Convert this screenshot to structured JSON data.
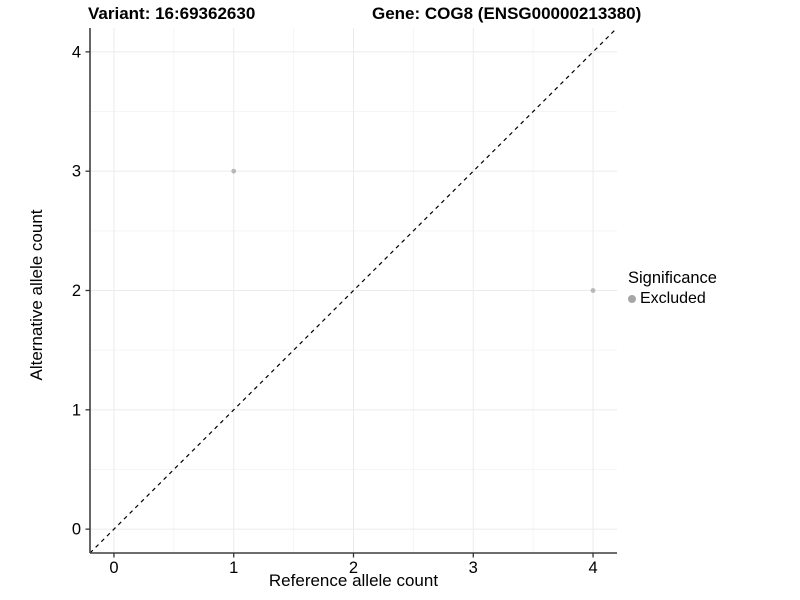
{
  "chart_data": {
    "type": "scatter",
    "titles": {
      "left": "Variant: 16:69362630",
      "right": "Gene: COG8 (ENSG00000213380)"
    },
    "xlabel": "Reference allele count",
    "ylabel": "Alternative allele count",
    "xlim": [
      -0.2,
      4.2
    ],
    "ylim": [
      -0.2,
      4.2
    ],
    "x_ticks": [
      0,
      1,
      2,
      3,
      4
    ],
    "y_ticks": [
      0,
      1,
      2,
      3,
      4
    ],
    "grid": {
      "major": true,
      "minor": true,
      "minor_step": 0.5
    },
    "series": [
      {
        "name": "Excluded",
        "color": "#b8b8b8",
        "points": [
          {
            "x": 1,
            "y": 3
          },
          {
            "x": 4,
            "y": 2
          }
        ]
      }
    ],
    "reference_line": {
      "type": "identity",
      "equation": "y = x",
      "style": "dashed",
      "color": "#000000"
    },
    "legend": {
      "title": "Significance",
      "position": "right",
      "items": [
        {
          "label": "Excluded",
          "color": "#a6a6a6"
        }
      ]
    }
  },
  "colors": {
    "background": "#ffffff",
    "grid_major": "#ebebeb",
    "grid_minor": "#f5f5f5",
    "axis_line": "#3f3f3f",
    "tick_mark": "#333333",
    "text": "#000000"
  }
}
